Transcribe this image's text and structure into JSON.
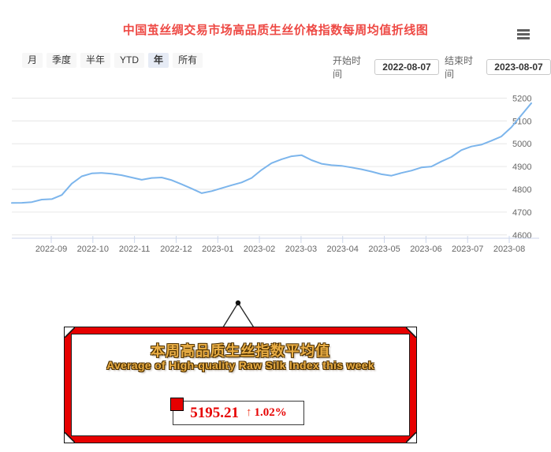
{
  "header": {
    "title": "中国茧丝绸交易市场高品质生丝价格指数每周均值折线图"
  },
  "toolbar": {
    "range_buttons": [
      {
        "label": "月",
        "selected": false
      },
      {
        "label": "季度",
        "selected": false
      },
      {
        "label": "半年",
        "selected": false
      },
      {
        "label": "YTD",
        "selected": false
      },
      {
        "label": "年",
        "selected": true
      },
      {
        "label": "所有",
        "selected": false
      }
    ],
    "start_label": "开始时间",
    "start_value": "2022-08-07",
    "end_label": "结束时间",
    "end_value": "2023-08-07"
  },
  "chart_data": {
    "type": "line",
    "frequency": "weekly",
    "x_start": "2022-08-07",
    "x_end": "2023-08-07",
    "x_tick_labels": [
      "2022-09",
      "2022-10",
      "2022-11",
      "2022-12",
      "2023-01",
      "2023-02",
      "2023-03",
      "2023-04",
      "2023-05",
      "2023-06",
      "2023-07",
      "2023-08"
    ],
    "y_ticks": [
      4600,
      4700,
      4800,
      4900,
      5000,
      5100,
      5200
    ],
    "ylim": [
      4600,
      5235
    ],
    "y_axis_side": "right",
    "grid": true,
    "line_color": "#7cb5ec",
    "grid_color": "#e6e6e6",
    "axis_color": "#ccd6eb",
    "label_color": "#666666",
    "values": [
      4740,
      4741,
      4744,
      4755,
      4757,
      4775,
      4825,
      4857,
      4870,
      4872,
      4868,
      4862,
      4852,
      4842,
      4850,
      4852,
      4840,
      4822,
      4803,
      4783,
      4792,
      4805,
      4818,
      4830,
      4850,
      4885,
      4915,
      4932,
      4945,
      4950,
      4928,
      4912,
      4906,
      4903,
      4896,
      4888,
      4878,
      4866,
      4860,
      4872,
      4882,
      4896,
      4900,
      4922,
      4942,
      4972,
      4988,
      4996,
      5013,
      5032,
      5072,
      5125,
      5178
    ]
  },
  "info_box": {
    "title_zh": "本周高品质生丝指数平均值",
    "title_en": "Average of High-quality Raw Silk Index this week",
    "value": "5195.21",
    "arrow": "↑",
    "change": "1.02%"
  },
  "colors": {
    "title_red": "#ee4a45",
    "box_border_red": "#e60000",
    "gold": "#eaae45",
    "value_red": "#e60000"
  }
}
